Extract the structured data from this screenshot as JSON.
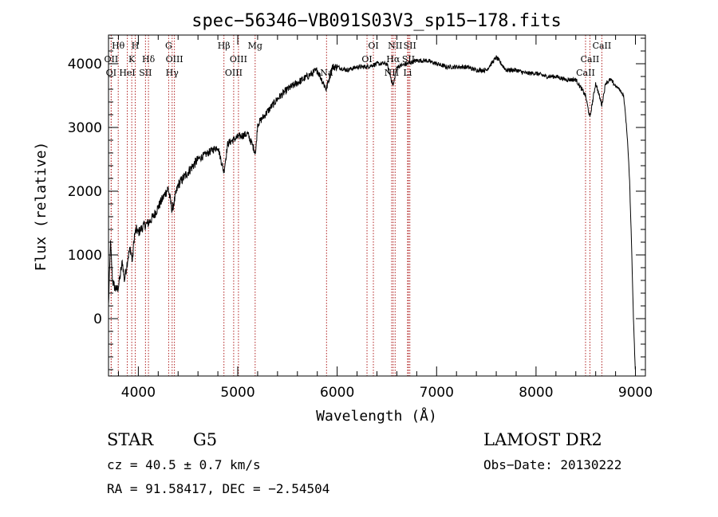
{
  "chart_data": {
    "type": "line",
    "title": "spec−56346−VB091S03V3_sp15−178.fits",
    "xlabel": "Wavelength (Å)",
    "ylabel": "Flux (relative)",
    "xlim": [
      3700,
      9100
    ],
    "ylim": [
      -900,
      4450
    ],
    "x_ticks": [
      4000,
      5000,
      6000,
      7000,
      8000,
      9000
    ],
    "y_ticks": [
      0,
      1000,
      2000,
      3000,
      4000
    ],
    "grid": false,
    "series": [
      {
        "name": "spectrum",
        "x": [
          3700,
          3720,
          3740,
          3760,
          3780,
          3800,
          3820,
          3840,
          3860,
          3880,
          3900,
          3920,
          3940,
          3960,
          3980,
          4000,
          4050,
          4100,
          4150,
          4200,
          4250,
          4300,
          4340,
          4400,
          4500,
          4600,
          4700,
          4800,
          4860,
          4900,
          5000,
          5100,
          5180,
          5200,
          5300,
          5400,
          5500,
          5600,
          5700,
          5800,
          5890,
          5950,
          6000,
          6100,
          6200,
          6300,
          6400,
          6500,
          6563,
          6600,
          6700,
          6800,
          6900,
          7000,
          7100,
          7200,
          7300,
          7400,
          7500,
          7600,
          7700,
          7800,
          7900,
          8000,
          8100,
          8200,
          8300,
          8400,
          8498,
          8542,
          8600,
          8662,
          8700,
          8750,
          8800,
          8840,
          8880,
          8900,
          8920,
          8940,
          8960,
          8980,
          9000
        ],
        "y": [
          200,
          1200,
          600,
          500,
          450,
          500,
          700,
          900,
          600,
          800,
          1000,
          1100,
          900,
          1300,
          1400,
          1350,
          1450,
          1500,
          1600,
          1750,
          1900,
          2050,
          1700,
          2100,
          2300,
          2500,
          2600,
          2700,
          2300,
          2750,
          2850,
          2900,
          2600,
          3050,
          3250,
          3450,
          3600,
          3700,
          3800,
          3900,
          3600,
          3950,
          3950,
          3900,
          3950,
          3950,
          4000,
          4000,
          3650,
          3950,
          4000,
          4050,
          4050,
          4000,
          3950,
          3950,
          3950,
          3900,
          3900,
          4100,
          3900,
          3900,
          3850,
          3850,
          3800,
          3800,
          3750,
          3750,
          3500,
          3150,
          3700,
          3350,
          3700,
          3750,
          3650,
          3600,
          3500,
          3200,
          2800,
          2200,
          1200,
          0,
          -900
        ]
      }
    ],
    "line_markers": [
      {
        "label": "Hθ",
        "x": 3798,
        "row": 1
      },
      {
        "label": "H",
        "x": 3969,
        "row": 1
      },
      {
        "label": "G",
        "x": 4305,
        "row": 1
      },
      {
        "label": "Hβ",
        "x": 4861,
        "row": 1
      },
      {
        "label": "Mg",
        "x": 5175,
        "row": 1
      },
      {
        "label": "OI",
        "x": 6364,
        "row": 1
      },
      {
        "label": "NII",
        "x": 6583,
        "row": 1
      },
      {
        "label": "SII",
        "x": 6731,
        "row": 1
      },
      {
        "label": "CaII",
        "x": 8662,
        "row": 1
      },
      {
        "label": "OII",
        "x": 3727,
        "row": 2
      },
      {
        "label": "K",
        "x": 3934,
        "row": 2
      },
      {
        "label": "Hδ",
        "x": 4102,
        "row": 2
      },
      {
        "label": "OIII",
        "x": 4363,
        "row": 2
      },
      {
        "label": "OIII",
        "x": 5007,
        "row": 2
      },
      {
        "label": "OI",
        "x": 6300,
        "row": 2
      },
      {
        "label": "Hα",
        "x": 6563,
        "row": 2
      },
      {
        "label": "SII",
        "x": 6717,
        "row": 2
      },
      {
        "label": "CaII",
        "x": 8542,
        "row": 2
      },
      {
        "label": "OI",
        "x": 3727,
        "row": 3
      },
      {
        "label": "HeI",
        "x": 3889,
        "row": 3
      },
      {
        "label": "SII",
        "x": 4072,
        "row": 3
      },
      {
        "label": "Hγ",
        "x": 4340,
        "row": 3
      },
      {
        "label": "OIII",
        "x": 4959,
        "row": 3
      },
      {
        "label": "Na",
        "x": 5893,
        "row": 3
      },
      {
        "label": "NII",
        "x": 6548,
        "row": 3
      },
      {
        "label": "Li",
        "x": 6708,
        "row": 3
      },
      {
        "label": "CaII",
        "x": 8498,
        "row": 3
      }
    ]
  },
  "info": {
    "object_class": "STAR",
    "subclass": "G5",
    "survey": "LAMOST DR2",
    "cz": "cz = 40.5 ± 0.7 km/s",
    "obs_date": "Obs−Date: 20130222",
    "coords": "RA =  91.58417, DEC =  −2.54504"
  }
}
